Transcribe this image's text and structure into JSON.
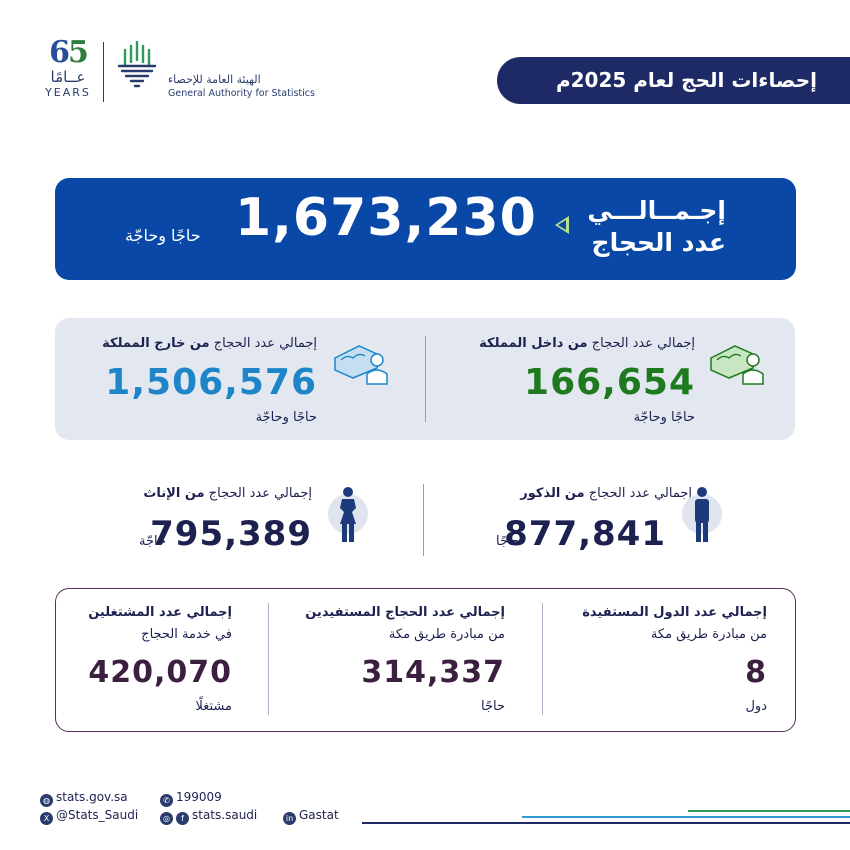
{
  "header": {
    "logo65": {
      "number_left": "6",
      "number_right": "5",
      "arabic": "عــامًا",
      "english": "YEARS"
    },
    "org": {
      "name_ar": "الهيئة العامة للإحصاء",
      "name_en": "General Authority for Statistics"
    },
    "title": "إحصاءات الحج لعام 2025م"
  },
  "total": {
    "label_line1": "إجـمــالـــي",
    "label_line2": "عدد الحجاج",
    "value": "1,673,230",
    "unit": "حاجًا وحاجّة"
  },
  "inside": {
    "label_prefix": "إجمالي عدد الحجاج",
    "label_bold": "من داخل المملكة",
    "value": "166,654",
    "unit": "حاجًا وحاجّة",
    "icon": "pilgrim-icon",
    "color": "#1f7a1f"
  },
  "outside": {
    "label_prefix": "إجمالي عدد الحجاج",
    "label_bold": "من خارج المملكة",
    "value": "1,506,576",
    "unit": "حاجًا وحاجّة",
    "icon": "pilgrim-icon",
    "color": "#1e86c8"
  },
  "males": {
    "label_prefix": "إجمالي عدد الحجاج",
    "label_bold": "من الذكور",
    "value": "877,841",
    "unit": "حاجًا",
    "icon": "male-icon"
  },
  "females": {
    "label_prefix": "إجمالي عدد الحجاج",
    "label_bold": "من الإناث",
    "value": "795,389",
    "unit": "حاجّة",
    "icon": "female-icon"
  },
  "stats": [
    {
      "title": "إجمالي عدد الدول المستفيدة",
      "subtitle": "من مبادرة طريق مكة",
      "value": "8",
      "unit": "دول"
    },
    {
      "title": "إجمالي عدد الحجاج المستفيدين",
      "subtitle": "من مبادرة طريق مكة",
      "value": "314,337",
      "unit": "حاجًا"
    },
    {
      "title": "إجمالي عدد المشتغلين",
      "subtitle": "في خدمة الحجاج",
      "value": "420,070",
      "unit": "مشتغلًا"
    }
  ],
  "footer": {
    "website": "stats.gov.sa",
    "phone": "199009",
    "x_handle": "@Stats_Saudi",
    "social": "stats.saudi",
    "linkedin": "Gastat"
  }
}
